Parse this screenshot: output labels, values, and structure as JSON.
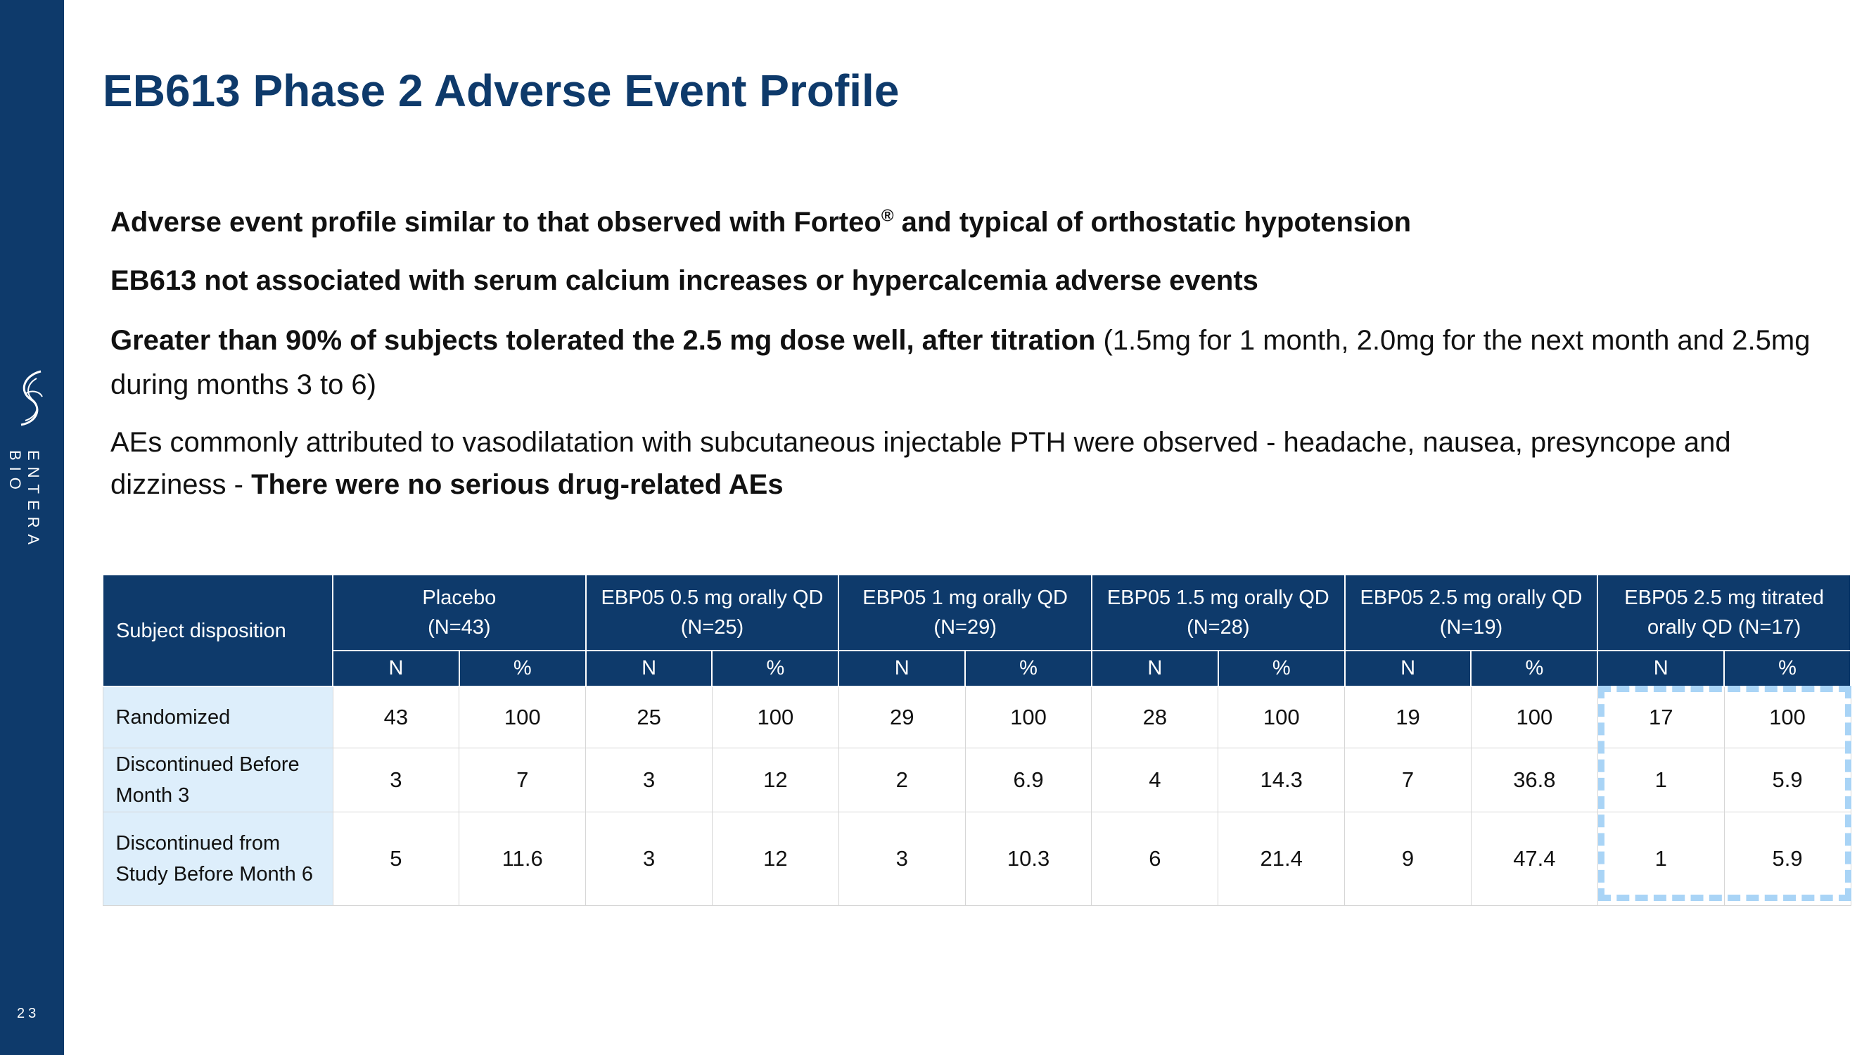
{
  "brand": "ENTERA BIO",
  "page_number": "23",
  "title": "EB613 Phase 2 Adverse Event Profile",
  "bullets": {
    "b1_before": "Adverse event profile similar to that observed with Forteo",
    "b1_sup": "®",
    "b1_after": " and typical of orthostatic hypotension",
    "b2": "EB613 not associated with serum calcium increases or hypercalcemia adverse events",
    "b3_bold": "Greater than 90% of subjects tolerated the 2.5 mg dose well, after titration",
    "b3_normal": " (1.5mg for 1 month, 2.0mg for the next month and 2.5mg during months 3 to 6)",
    "b4_normal": "AEs commonly attributed to vasodilatation with subcutaneous injectable PTH were observed - headache, nausea, presyncope and dizziness - ",
    "b4_bold": "There were no serious drug-related AEs"
  },
  "table": {
    "corner_label": "Subject disposition",
    "groups": [
      {
        "line1": "Placebo",
        "line2": "(N=43)"
      },
      {
        "line1": "EBP05 0.5 mg orally QD",
        "line2": "(N=25)"
      },
      {
        "line1": "EBP05 1 mg orally QD",
        "line2": "(N=29)"
      },
      {
        "line1": "EBP05 1.5 mg orally QD",
        "line2": "(N=28)"
      },
      {
        "line1": "EBP05 2.5 mg orally QD",
        "line2": "(N=19)"
      },
      {
        "line1": "EBP05 2.5 mg titrated",
        "line2": "orally QD (N=17)"
      }
    ],
    "subheaders": {
      "n": "N",
      "pct": "%"
    },
    "rows": [
      {
        "label": "Randomized",
        "values": [
          "43",
          "100",
          "25",
          "100",
          "29",
          "100",
          "28",
          "100",
          "19",
          "100",
          "17",
          "100"
        ]
      },
      {
        "label_line1": "Discontinued Before",
        "label_line2": "Month 3",
        "values": [
          "3",
          "7",
          "3",
          "12",
          "2",
          "6.9",
          "4",
          "14.3",
          "7",
          "36.8",
          "1",
          "5.9"
        ]
      },
      {
        "label_line1": "Discontinued from",
        "label_line2": "Study Before Month 6",
        "values": [
          "5",
          "11.6",
          "3",
          "12",
          "3",
          "10.3",
          "6",
          "21.4",
          "9",
          "47.4",
          "1",
          "5.9"
        ]
      }
    ]
  },
  "colors": {
    "navy": "#0e3a6b",
    "row_header_bg": "#ddeefb",
    "highlight_border": "#a9d4f6"
  }
}
